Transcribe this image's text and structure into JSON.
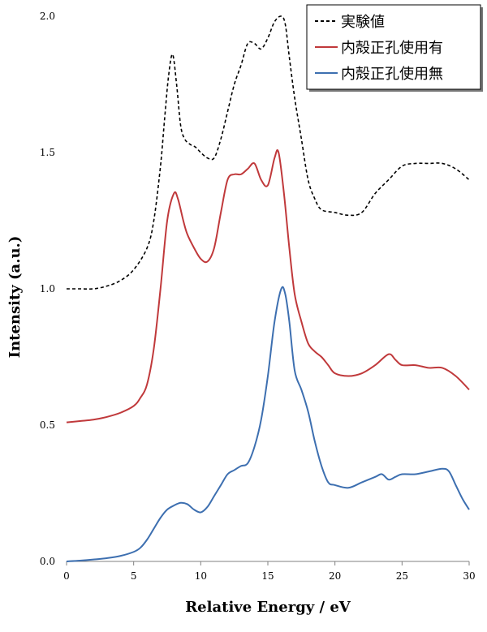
{
  "chart_data": {
    "type": "line",
    "title": "",
    "xlabel": "Relative Energy / eV",
    "ylabel": "Intensity (a.u.)",
    "xlim": [
      0,
      30
    ],
    "ylim": [
      0,
      2.0
    ],
    "xticks": [
      0,
      5,
      10,
      15,
      20,
      25,
      30
    ],
    "yticks": [
      0.0,
      0.5,
      1.0,
      1.5,
      2.0
    ],
    "ytick_labels": [
      "0.0",
      "0.5",
      "1.0",
      "1.5",
      "2.0"
    ],
    "grid": false,
    "legend_position": "top-right",
    "series": [
      {
        "name": "実験値",
        "color": "#000000",
        "style": "dashed",
        "x": [
          0,
          1,
          2,
          3,
          4,
          5,
          6,
          6.5,
          7,
          7.3,
          7.6,
          7.9,
          8.2,
          8.5,
          8.8,
          9.2,
          9.6,
          10,
          10.5,
          11,
          11.5,
          12,
          12.5,
          13,
          13.5,
          14,
          14.5,
          15,
          15.5,
          16,
          16.3,
          16.6,
          17,
          17.5,
          18,
          18.5,
          19,
          20,
          21,
          22,
          23,
          24,
          25,
          26,
          27,
          28,
          29,
          30
        ],
        "y": [
          1.0,
          1.0,
          1.0,
          1.01,
          1.03,
          1.07,
          1.15,
          1.25,
          1.45,
          1.62,
          1.78,
          1.86,
          1.75,
          1.6,
          1.55,
          1.53,
          1.52,
          1.5,
          1.48,
          1.48,
          1.55,
          1.65,
          1.75,
          1.82,
          1.9,
          1.9,
          1.88,
          1.92,
          1.98,
          2.0,
          1.97,
          1.85,
          1.7,
          1.55,
          1.4,
          1.33,
          1.29,
          1.28,
          1.27,
          1.28,
          1.35,
          1.4,
          1.45,
          1.46,
          1.46,
          1.46,
          1.44,
          1.4
        ]
      },
      {
        "name": "内殻正孔使用有",
        "color": "#c0393b",
        "style": "solid",
        "x": [
          0,
          1,
          2,
          3,
          4,
          5,
          5.5,
          6,
          6.5,
          7,
          7.5,
          8,
          8.3,
          8.7,
          9,
          9.5,
          10,
          10.5,
          11,
          11.5,
          12,
          12.5,
          13,
          13.5,
          14,
          14.5,
          15,
          15.5,
          15.8,
          16.2,
          16.6,
          17,
          17.5,
          18,
          18.5,
          19,
          19.5,
          20,
          21,
          22,
          23,
          24,
          24.5,
          25,
          26,
          27,
          28,
          29,
          30
        ],
        "y": [
          0.51,
          0.515,
          0.52,
          0.53,
          0.545,
          0.57,
          0.6,
          0.65,
          0.78,
          1.0,
          1.25,
          1.35,
          1.33,
          1.25,
          1.2,
          1.15,
          1.11,
          1.1,
          1.15,
          1.28,
          1.4,
          1.42,
          1.42,
          1.44,
          1.46,
          1.4,
          1.38,
          1.48,
          1.5,
          1.35,
          1.15,
          0.98,
          0.88,
          0.8,
          0.77,
          0.75,
          0.72,
          0.69,
          0.68,
          0.69,
          0.72,
          0.76,
          0.74,
          0.72,
          0.72,
          0.71,
          0.71,
          0.68,
          0.63
        ]
      },
      {
        "name": "内殻正孔使用無",
        "color": "#3d6fb0",
        "style": "solid",
        "x": [
          0,
          1,
          2,
          3,
          4,
          5,
          5.5,
          6,
          6.5,
          7,
          7.5,
          8,
          8.5,
          9,
          9.5,
          10,
          10.5,
          11,
          11.5,
          12,
          12.5,
          13,
          13.5,
          14,
          14.5,
          15,
          15.5,
          16,
          16.3,
          16.6,
          17,
          17.5,
          18,
          18.5,
          19,
          19.5,
          20,
          21,
          22,
          23,
          23.5,
          24,
          24.5,
          25,
          26,
          27,
          28,
          28.5,
          29,
          29.5,
          30
        ],
        "y": [
          0.0,
          0.003,
          0.007,
          0.012,
          0.02,
          0.035,
          0.05,
          0.08,
          0.12,
          0.16,
          0.19,
          0.205,
          0.215,
          0.21,
          0.19,
          0.18,
          0.2,
          0.24,
          0.28,
          0.32,
          0.335,
          0.35,
          0.36,
          0.42,
          0.52,
          0.68,
          0.88,
          1.0,
          0.98,
          0.88,
          0.7,
          0.63,
          0.55,
          0.44,
          0.35,
          0.29,
          0.28,
          0.27,
          0.29,
          0.31,
          0.32,
          0.3,
          0.31,
          0.32,
          0.32,
          0.33,
          0.34,
          0.33,
          0.28,
          0.23,
          0.19
        ]
      }
    ]
  }
}
